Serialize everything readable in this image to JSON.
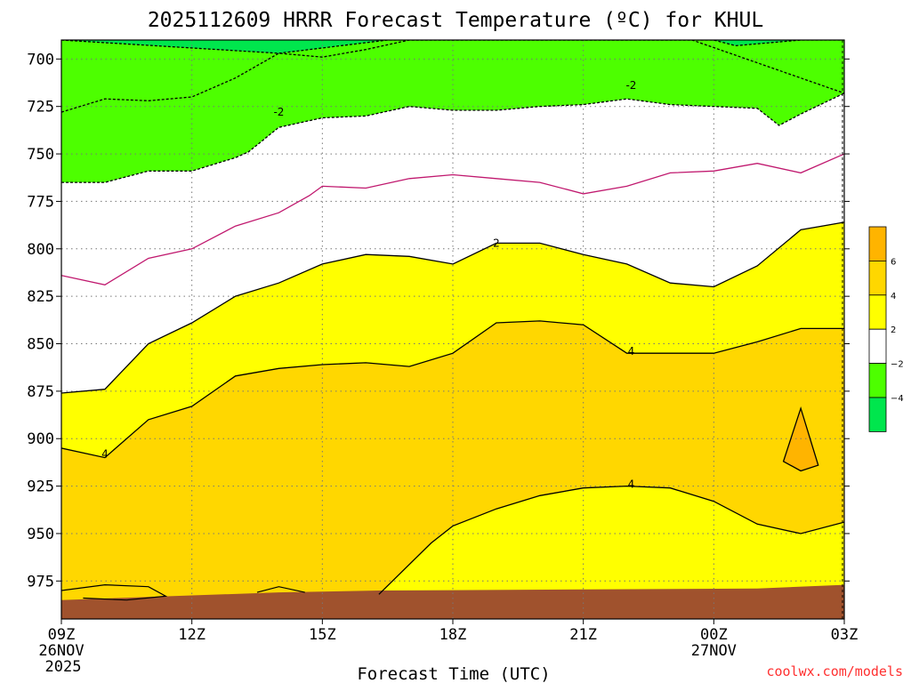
{
  "chart_data": {
    "type": "contour",
    "title": "2025112609 HRRR Forecast Temperature (ºC) for KHUL",
    "xlabel": "Forecast Time (UTC)",
    "ylabel": "",
    "credit": "coolwx.com/models",
    "x_hours": [
      0,
      18
    ],
    "x_ticks": [
      {
        "hour": 0,
        "label": "09Z",
        "date": "26NOV",
        "year": "2025"
      },
      {
        "hour": 3,
        "label": "12Z"
      },
      {
        "hour": 6,
        "label": "15Z"
      },
      {
        "hour": 9,
        "label": "18Z"
      },
      {
        "hour": 12,
        "label": "21Z"
      },
      {
        "hour": 15,
        "label": "00Z",
        "date": "27NOV"
      },
      {
        "hour": 18,
        "label": "03Z"
      }
    ],
    "y_pressure_hpa": [
      690,
      995
    ],
    "y_ticks": [
      "700",
      "725",
      "750",
      "775",
      "800",
      "825",
      "850",
      "875",
      "900",
      "925",
      "950",
      "975"
    ],
    "colorbar": {
      "colors": [
        "#00e64d",
        "#4dff00",
        "#ffffff",
        "#ffff00",
        "#ffd700",
        "#ffb400"
      ],
      "labels": [
        "−4",
        "−2",
        "2",
        "4",
        "6"
      ]
    },
    "contour_labels": [
      {
        "value": "-2",
        "hour": 5.0,
        "p": 728
      },
      {
        "value": "-2",
        "hour": 13.1,
        "p": 714
      },
      {
        "value": "2",
        "hour": 10.0,
        "p": 797
      },
      {
        "value": "4",
        "hour": 13.1,
        "p": 854
      },
      {
        "value": "4",
        "hour": 1.0,
        "p": 908
      },
      {
        "value": "4",
        "hour": 13.1,
        "p": 924
      }
    ],
    "series": [
      {
        "name": "-4 isotherm",
        "points": [
          [
            0,
            690
          ],
          [
            5,
            697
          ],
          [
            7.5,
            690
          ],
          [
            15,
            690
          ],
          [
            15.5,
            693
          ],
          [
            17,
            690
          ],
          [
            18,
            690
          ]
        ]
      },
      {
        "name": "-2 isotherm",
        "points": [
          [
            0,
            728
          ],
          [
            1,
            721
          ],
          [
            2,
            722
          ],
          [
            3,
            720
          ],
          [
            4,
            710
          ],
          [
            5,
            697
          ],
          [
            6,
            699
          ],
          [
            7,
            695
          ],
          [
            8,
            690
          ],
          [
            14.5,
            690
          ],
          [
            18,
            718
          ]
        ]
      },
      {
        "name": "-2 isotherm (lower)",
        "points": [
          [
            0,
            765
          ],
          [
            1,
            765
          ],
          [
            2,
            759
          ],
          [
            3,
            759
          ],
          [
            4,
            752
          ],
          [
            4.3,
            749
          ],
          [
            5,
            736
          ],
          [
            6,
            731
          ],
          [
            7,
            730
          ],
          [
            8,
            725
          ],
          [
            9,
            727
          ],
          [
            10,
            727
          ],
          [
            11,
            725
          ],
          [
            12,
            724
          ],
          [
            13,
            721
          ],
          [
            14,
            724
          ],
          [
            15,
            725
          ],
          [
            16,
            726
          ],
          [
            16.5,
            735
          ],
          [
            17,
            729
          ],
          [
            18,
            718
          ]
        ]
      },
      {
        "name": "0 isotherm",
        "points": [
          [
            0,
            814
          ],
          [
            1,
            819
          ],
          [
            2,
            805
          ],
          [
            3,
            800
          ],
          [
            4,
            788
          ],
          [
            5,
            781
          ],
          [
            5.7,
            772
          ],
          [
            6,
            767
          ],
          [
            7,
            768
          ],
          [
            8,
            763
          ],
          [
            9,
            761
          ],
          [
            10,
            763
          ],
          [
            11,
            765
          ],
          [
            12,
            771
          ],
          [
            13,
            767
          ],
          [
            14,
            760
          ],
          [
            15,
            759
          ],
          [
            16,
            755
          ],
          [
            17,
            760
          ],
          [
            18,
            750
          ]
        ]
      },
      {
        "name": "2 isotherm",
        "points": [
          [
            0,
            876
          ],
          [
            1,
            874
          ],
          [
            2,
            850
          ],
          [
            3,
            839
          ],
          [
            4,
            825
          ],
          [
            5,
            818
          ],
          [
            6,
            808
          ],
          [
            7,
            803
          ],
          [
            8,
            804
          ],
          [
            9,
            808
          ],
          [
            10,
            797
          ],
          [
            11,
            797
          ],
          [
            12,
            803
          ],
          [
            13,
            808
          ],
          [
            14,
            818
          ],
          [
            15,
            820
          ],
          [
            16,
            809
          ],
          [
            17,
            790
          ],
          [
            18,
            786
          ]
        ]
      },
      {
        "name": "4 isotherm (upper)",
        "points": [
          [
            0,
            905
          ],
          [
            1,
            910
          ],
          [
            2,
            890
          ],
          [
            3,
            883
          ],
          [
            4,
            867
          ],
          [
            5,
            863
          ],
          [
            6,
            861
          ],
          [
            7,
            860
          ],
          [
            8,
            862
          ],
          [
            9,
            855
          ],
          [
            10,
            839
          ],
          [
            11,
            838
          ],
          [
            12,
            840
          ],
          [
            13,
            855
          ],
          [
            14,
            855
          ],
          [
            15,
            855
          ],
          [
            16,
            849
          ],
          [
            17,
            842
          ],
          [
            18,
            842
          ]
        ]
      },
      {
        "name": "4 isotherm (lower)",
        "points": [
          [
            7.3,
            982
          ],
          [
            8.5,
            955
          ],
          [
            9,
            946
          ],
          [
            10,
            937
          ],
          [
            11,
            930
          ],
          [
            12,
            926
          ],
          [
            13,
            925
          ],
          [
            14,
            926
          ],
          [
            15,
            933
          ],
          [
            16,
            945
          ],
          [
            17,
            950
          ],
          [
            18,
            944
          ]
        ]
      },
      {
        "name": "6 isotherm cell",
        "points": [
          [
            16.6,
            912
          ],
          [
            17,
            884
          ],
          [
            17.4,
            914
          ],
          [
            17,
            917
          ]
        ]
      }
    ]
  }
}
